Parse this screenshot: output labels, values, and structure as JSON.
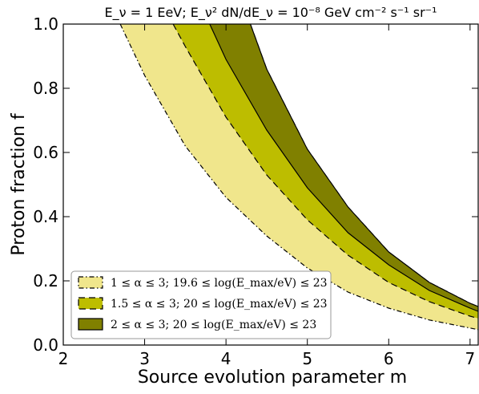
{
  "chart_data": {
    "type": "area",
    "title": "E_ν = 1 EeV; E_ν² dN/dE_ν = 10⁻⁸ GeV cm⁻² s⁻¹ sr⁻¹",
    "xlabel": "Source evolution parameter m",
    "ylabel": "Proton fraction f",
    "xlim": [
      2,
      7.1
    ],
    "ylim": [
      0,
      1.0
    ],
    "x_ticks": [
      "2",
      "3",
      "4",
      "5",
      "6",
      "7"
    ],
    "y_ticks": [
      "0.0",
      "0.2",
      "0.4",
      "0.6",
      "0.8",
      "1.0"
    ],
    "grid": false,
    "legend_position": "lower-left",
    "series": [
      {
        "name": "1 ≤ α ≤ 3; 19.6 ≤ log(E_max/eV) ≤ 23",
        "color": "#f0e68c",
        "line_style": "dashdot",
        "lower": {
          "x": [
            2.7,
            3.0,
            3.5,
            4.0,
            4.5,
            5.0,
            5.5,
            6.0,
            6.5,
            7.0,
            7.1
          ],
          "y": [
            1.0,
            0.84,
            0.62,
            0.46,
            0.34,
            0.24,
            0.165,
            0.115,
            0.078,
            0.053,
            0.048
          ]
        },
        "upper": {
          "x": [
            4.2,
            4.5,
            5.0,
            5.5,
            6.0,
            6.5,
            7.0,
            7.1
          ],
          "y": [
            1.0,
            0.84,
            0.6,
            0.42,
            0.29,
            0.195,
            0.13,
            0.12
          ]
        }
      },
      {
        "name": "1.5 ≤ α ≤ 3; 20 ≤ log(E_max/eV) ≤ 23",
        "color": "#bdbd00",
        "line_style": "dashed",
        "lower": {
          "x": [
            3.35,
            3.5,
            4.0,
            4.5,
            5.0,
            5.5,
            6.0,
            6.5,
            7.0,
            7.1
          ],
          "y": [
            1.0,
            0.93,
            0.71,
            0.53,
            0.39,
            0.28,
            0.195,
            0.135,
            0.09,
            0.083
          ]
        },
        "upper": {
          "x": [
            4.3,
            4.5,
            5.0,
            5.5,
            6.0,
            6.5,
            7.0,
            7.1
          ],
          "y": [
            1.0,
            0.86,
            0.61,
            0.43,
            0.29,
            0.195,
            0.13,
            0.12
          ]
        }
      },
      {
        "name": "2 ≤ α ≤ 3; 20 ≤ log(E_max/eV) ≤ 23",
        "color": "#808000",
        "line_style": "solid",
        "lower": {
          "x": [
            3.8,
            4.0,
            4.5,
            5.0,
            5.5,
            6.0,
            6.5,
            7.0,
            7.1
          ],
          "y": [
            1.0,
            0.89,
            0.67,
            0.49,
            0.35,
            0.25,
            0.17,
            0.115,
            0.105
          ]
        },
        "upper": {
          "x": [
            4.3,
            4.5,
            5.0,
            5.5,
            6.0,
            6.5,
            7.0,
            7.1
          ],
          "y": [
            1.0,
            0.86,
            0.61,
            0.43,
            0.29,
            0.195,
            0.13,
            0.12
          ]
        }
      }
    ]
  }
}
